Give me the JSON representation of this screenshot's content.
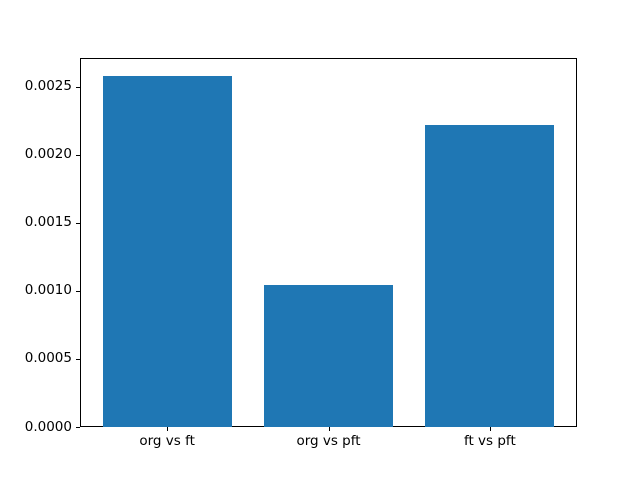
{
  "chart_data": {
    "type": "bar",
    "title": "",
    "xlabel": "",
    "ylabel": "",
    "categories": [
      "org vs ft",
      "org vs pft",
      "ft vs pft"
    ],
    "values": [
      0.00258,
      0.00104,
      0.00222
    ],
    "bar_color": "#1f77b4",
    "ylim": [
      0,
      0.00271
    ],
    "yticks": [
      0.0,
      0.0005,
      0.001,
      0.0015,
      0.002,
      0.0025
    ],
    "ytick_labels": [
      "0.0000",
      "0.0005",
      "0.0010",
      "0.0015",
      "0.0020",
      "0.0025"
    ],
    "grid": false,
    "legend": null,
    "axis_color": "#000000",
    "background_color": "#ffffff"
  }
}
